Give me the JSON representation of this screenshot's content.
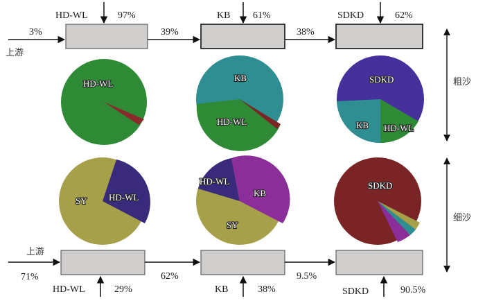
{
  "diagram": {
    "top": {
      "inlet_label": "上游",
      "inlet_pct": "3%",
      "flows": [
        "39%",
        "38%"
      ],
      "side_label": "粗沙",
      "sources": [
        {
          "name": "HD-WL",
          "pct": "97%"
        },
        {
          "name": "KB",
          "pct": "61%"
        },
        {
          "name": "SDKD",
          "pct": "62%"
        }
      ]
    },
    "bottom": {
      "inlet_label": "上游",
      "inlet_pct": "71%",
      "flows": [
        "62%",
        "9.5%"
      ],
      "side_label": "细沙",
      "sources": [
        {
          "name": "HD-WL",
          "pct": "29%"
        },
        {
          "name": "KB",
          "pct": "38%"
        },
        {
          "name": "SDKD",
          "pct": "90.5%"
        }
      ]
    },
    "pies": {
      "coarse_1": {
        "labels": [
          "HD-WL"
        ]
      },
      "coarse_2": {
        "labels": [
          "KB",
          "HD-WL"
        ]
      },
      "coarse_3": {
        "labels": [
          "SDKD",
          "KB",
          "HD-WL"
        ]
      },
      "fine_1": {
        "labels": [
          "SY",
          "HD-WL"
        ]
      },
      "fine_2": {
        "labels": [
          "HD-WL",
          "KB",
          "SY"
        ]
      },
      "fine_3": {
        "labels": [
          "SDKD"
        ]
      }
    },
    "colors": {
      "box_fill": "#d0cdcd",
      "green": "#2e8a34",
      "teal": "#2f8e92",
      "purple_blue": "#45309c",
      "olive": "#a7a04a",
      "navy_purple": "#3a2a7c",
      "magenta": "#8c2e9a",
      "maroon": "#7a2426",
      "dark_red": "#8a2a2a"
    }
  }
}
